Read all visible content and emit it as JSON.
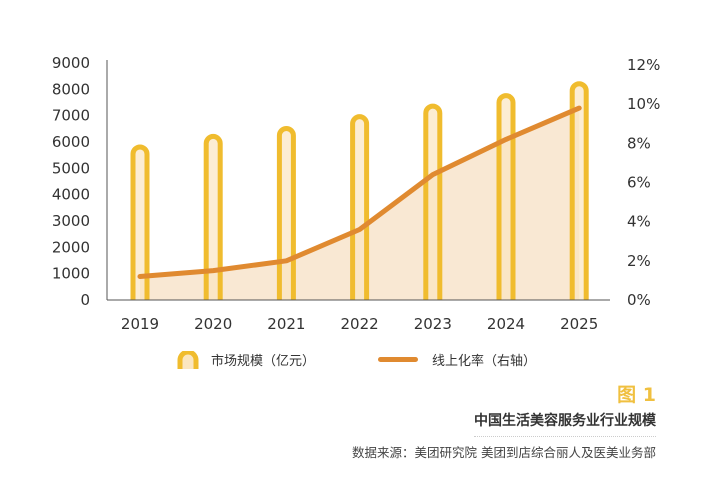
{
  "chart_data": {
    "type": "bar+line",
    "categories": [
      "2019",
      "2020",
      "2021",
      "2022",
      "2023",
      "2024",
      "2025"
    ],
    "series": [
      {
        "name": "市场规模（亿元）",
        "type": "bar",
        "axis": "left",
        "values": [
          5850,
          6250,
          6550,
          7000,
          7400,
          7800,
          8250
        ],
        "color": "#f0bc2e"
      },
      {
        "name": "线上化率（右轴）",
        "type": "line",
        "axis": "right",
        "values": [
          1.2,
          1.5,
          2.0,
          3.6,
          6.4,
          8.2,
          9.8
        ],
        "unit": "%",
        "color": "#e08a30"
      }
    ],
    "y_left": {
      "range": [
        0,
        9000
      ],
      "ticks": [
        "0",
        "1000",
        "2000",
        "3000",
        "4000",
        "5000",
        "6000",
        "7000",
        "8000",
        "9000"
      ]
    },
    "y_right": {
      "range": [
        0,
        12
      ],
      "ticks": [
        "0%",
        "2%",
        "4%",
        "6%",
        "8%",
        "10%",
        "12%"
      ]
    },
    "legend_placement": "bottom",
    "grid": false
  },
  "legend": {
    "bar_label": "市场规模（亿元）",
    "line_label": "线上化率（右轴）"
  },
  "figure_label": "图 1",
  "title": "中国生活美容服务业行业规模",
  "source": "数据来源：美团研究院  美团到店综合丽人及医美业务部"
}
